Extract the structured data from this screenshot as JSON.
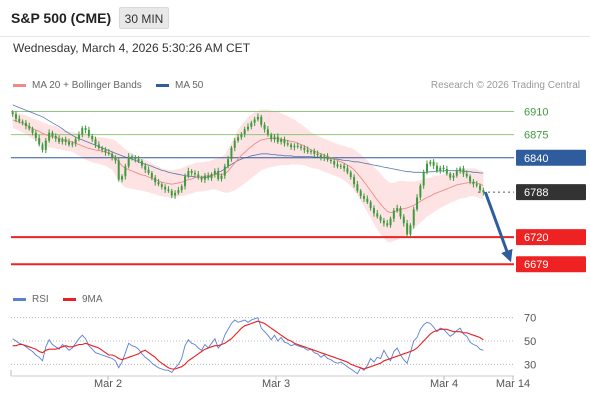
{
  "header": {
    "title": "S&P 500 (CME)",
    "interval": "30 MIN"
  },
  "datetime": "Wednesday, March 4, 2026 5:30:26 AM CET",
  "legend": {
    "ma20_label": "MA 20 + Bollinger Bands",
    "ma50_label": "MA 50",
    "credit": "Research © 2026 Trading Central"
  },
  "rsi_legend": {
    "rsi_label": "RSI",
    "ma_label": "9MA"
  },
  "colors": {
    "candle": "#3e9a3e",
    "bollinger_fill": "#fde3e3",
    "ma20": "#f08a8a",
    "ma50": "#2f5c9c",
    "resistance": "#93c47d",
    "pivot": "#2f5c9c",
    "support": "#ee2222",
    "last_price": "#333333",
    "arrow": "#2f5c9c",
    "rsi": "#5b7fd6",
    "rsi_ma": "#e82222"
  },
  "chart_data": [
    {
      "type": "candlestick",
      "name": "price",
      "x_ticks": [
        "Mar 2",
        "Mar 3",
        "Mar 4",
        "Mar 14"
      ],
      "ylim": [
        6640,
        6935
      ],
      "levels": [
        {
          "value": 6910,
          "label": "6910",
          "kind": "resistance"
        },
        {
          "value": 6875,
          "label": "6875",
          "kind": "resistance"
        },
        {
          "value": 6840,
          "label": "6840",
          "kind": "pivot"
        },
        {
          "value": 6788,
          "label": "6788",
          "kind": "last"
        },
        {
          "value": 6720,
          "label": "6720",
          "kind": "support"
        },
        {
          "value": 6679,
          "label": "6679",
          "kind": "support"
        }
      ],
      "close": [
        6906,
        6899,
        6895,
        6893,
        6888,
        6884,
        6878,
        6870,
        6860,
        6852,
        6866,
        6878,
        6873,
        6869,
        6864,
        6868,
        6864,
        6860,
        6862,
        6868,
        6875,
        6885,
        6882,
        6873,
        6868,
        6860,
        6855,
        6852,
        6848,
        6846,
        6840,
        6836,
        6807,
        6812,
        6827,
        6842,
        6840,
        6838,
        6835,
        6828,
        6822,
        6817,
        6810,
        6803,
        6800,
        6796,
        6792,
        6790,
        6783,
        6787,
        6791,
        6797,
        6812,
        6820,
        6817,
        6815,
        6810,
        6807,
        6813,
        6809,
        6815,
        6820,
        6808,
        6813,
        6827,
        6838,
        6855,
        6866,
        6871,
        6876,
        6883,
        6887,
        6893,
        6898,
        6902,
        6890,
        6883,
        6875,
        6868,
        6872,
        6864,
        6868,
        6862,
        6860,
        6856,
        6858,
        6857,
        6855,
        6852,
        6849,
        6850,
        6846,
        6844,
        6840,
        6842,
        6837,
        6835,
        6830,
        6827,
        6828,
        6824,
        6818,
        6811,
        6800,
        6790,
        6782,
        6778,
        6773,
        6764,
        6756,
        6751,
        6745,
        6741,
        6738,
        6748,
        6760,
        6764,
        6751,
        6741,
        6724,
        6738,
        6762,
        6780,
        6798,
        6818,
        6831,
        6834,
        6828,
        6820,
        6825,
        6823,
        6816,
        6810,
        6813,
        6820,
        6824,
        6816,
        6812,
        6804,
        6800,
        6798,
        6791,
        6788
      ],
      "ma20": [
        6897,
        6896,
        6894,
        6892,
        6890,
        6887,
        6884,
        6882,
        6880,
        6877,
        6875,
        6873,
        6872,
        6871,
        6869,
        6868,
        6866,
        6865,
        6864,
        6862,
        6860,
        6858,
        6856,
        6854,
        6853,
        6852,
        6851,
        6850,
        6849,
        6847,
        6845,
        6840,
        6834,
        6828,
        6824,
        6822,
        6820,
        6818,
        6816,
        6814,
        6813,
        6811,
        6809,
        6807,
        6805,
        6803,
        6802,
        6801,
        6800,
        6801,
        6802,
        6803,
        6805,
        6807,
        6808,
        6810,
        6811,
        6811,
        6812,
        6813,
        6814,
        6815,
        6815,
        6815,
        6816,
        6820,
        6826,
        6832,
        6838,
        6844,
        6848,
        6853,
        6857,
        6861,
        6864,
        6867,
        6868,
        6869,
        6869,
        6869,
        6869,
        6868,
        6867,
        6866,
        6865,
        6864,
        6862,
        6860,
        6858,
        6855,
        6852,
        6850,
        6848,
        6846,
        6844,
        6842,
        6840,
        6838,
        6836,
        6834,
        6832,
        6829,
        6826,
        6822,
        6816,
        6810,
        6804,
        6797,
        6790,
        6783,
        6776,
        6770,
        6764,
        6759,
        6757,
        6758,
        6760,
        6762,
        6763,
        6764,
        6766,
        6768,
        6771,
        6774,
        6777,
        6780,
        6782,
        6785,
        6787,
        6789,
        6791,
        6793,
        6795,
        6797,
        6799,
        6800,
        6801,
        6802,
        6803,
        6803,
        6802,
        6800,
        6798
      ],
      "ma50": [
        6920,
        6918,
        6916,
        6914,
        6912,
        6910,
        6908,
        6906,
        6904,
        6902,
        6899,
        6896,
        6893,
        6890,
        6887,
        6884,
        6880,
        6877,
        6874,
        6871,
        6869,
        6867,
        6865,
        6863,
        6861,
        6859,
        6857,
        6855,
        6853,
        6851,
        6849,
        6847,
        6845,
        6843,
        6841,
        6840,
        6838,
        6836,
        6834,
        6832,
        6830,
        6829,
        6827,
        6825,
        6823,
        6821,
        6820,
        6818,
        6817,
        6816,
        6815,
        6814,
        6813,
        6812,
        6812,
        6811,
        6811,
        6810,
        6810,
        6811,
        6813,
        6815,
        6818,
        6820,
        6823,
        6827,
        6830,
        6833,
        6836,
        6838,
        6840,
        6841,
        6843,
        6844,
        6845,
        6846,
        6846,
        6846,
        6845,
        6845,
        6844,
        6844,
        6843,
        6843,
        6843,
        6842,
        6842,
        6842,
        6842,
        6842,
        6842,
        6841,
        6841,
        6841,
        6840,
        6840,
        6839,
        6838,
        6838,
        6837,
        6836,
        6836,
        6835,
        6834,
        6834,
        6833,
        6832,
        6831,
        6830,
        6829,
        6828,
        6827,
        6826,
        6825,
        6824,
        6823,
        6822,
        6821,
        6820,
        6819,
        6819,
        6818,
        6818,
        6818,
        6818,
        6818,
        6819,
        6819,
        6820,
        6820,
        6820,
        6821,
        6821,
        6821,
        6821,
        6820,
        6820,
        6819,
        6819,
        6818,
        6818,
        6817,
        6817
      ],
      "bb_width": [
        12,
        13,
        13,
        14,
        14,
        15,
        15,
        16,
        16,
        17,
        17,
        17,
        17,
        17,
        16,
        16,
        15,
        15,
        15,
        16,
        17,
        18,
        19,
        19,
        20,
        20,
        20,
        21,
        21,
        22,
        23,
        26,
        28,
        29,
        29,
        28,
        27,
        26,
        25,
        24,
        24,
        23,
        23,
        22,
        22,
        21,
        21,
        21,
        21,
        21,
        21,
        21,
        22,
        22,
        22,
        22,
        22,
        22,
        22,
        22,
        22,
        23,
        24,
        26,
        29,
        33,
        37,
        41,
        44,
        46,
        47,
        48,
        48,
        48,
        47,
        46,
        45,
        44,
        43,
        42,
        41,
        39,
        38,
        37,
        35,
        34,
        32,
        31,
        29,
        28,
        27,
        26,
        25,
        25,
        25,
        25,
        25,
        25,
        25,
        25,
        26,
        27,
        29,
        31,
        33,
        35,
        37,
        39,
        41,
        43,
        45,
        46,
        46,
        46,
        45,
        44,
        44,
        43,
        42,
        40,
        38,
        36,
        34,
        32,
        31,
        29,
        28,
        27,
        26,
        25,
        24,
        24,
        23,
        23,
        23,
        22,
        22,
        22,
        21,
        21,
        21,
        21,
        21
      ]
    },
    {
      "type": "line",
      "name": "rsi",
      "ylim": [
        20,
        80
      ],
      "y_ticks": [
        {
          "value": 70,
          "label": "70"
        },
        {
          "value": 50,
          "label": "50"
        },
        {
          "value": 30,
          "label": "30"
        }
      ],
      "series": [
        {
          "name": "RSI",
          "values": [
            52,
            50,
            48,
            47,
            45,
            43,
            41,
            38,
            36,
            33,
            45,
            51,
            47,
            45,
            43,
            47,
            45,
            42,
            44,
            48,
            52,
            55,
            52,
            46,
            43,
            40,
            39,
            38,
            37,
            36,
            35,
            33,
            27,
            32,
            40,
            48,
            46,
            45,
            43,
            39,
            36,
            34,
            31,
            29,
            27,
            26,
            25,
            25,
            23,
            27,
            30,
            35,
            46,
            51,
            48,
            47,
            44,
            42,
            47,
            44,
            48,
            52,
            44,
            47,
            55,
            60,
            65,
            68,
            66,
            67,
            68,
            66,
            68,
            69,
            70,
            61,
            58,
            55,
            51,
            55,
            50,
            53,
            49,
            48,
            46,
            47,
            46,
            45,
            44,
            42,
            43,
            40,
            39,
            36,
            38,
            35,
            34,
            32,
            31,
            32,
            30,
            28,
            26,
            24,
            22,
            27,
            25,
            29,
            35,
            32,
            36,
            35,
            42,
            37,
            33,
            41,
            44,
            38,
            34,
            31,
            40,
            50,
            53,
            60,
            64,
            66,
            65,
            62,
            58,
            61,
            60,
            57,
            54,
            56,
            59,
            61,
            56,
            54,
            49,
            47,
            46,
            43,
            42
          ]
        },
        {
          "name": "9MA",
          "values": [
            46,
            46,
            47,
            47,
            46,
            45,
            44,
            43,
            41,
            40,
            42,
            43,
            43,
            43,
            44,
            45,
            46,
            45,
            45,
            46,
            47,
            47,
            48,
            47,
            46,
            45,
            44,
            42,
            40,
            38,
            38,
            37,
            35,
            34,
            35,
            36,
            37,
            38,
            39,
            41,
            42,
            40,
            38,
            36,
            33,
            31,
            29,
            27,
            26,
            26,
            27,
            28,
            30,
            33,
            35,
            37,
            39,
            41,
            43,
            44,
            45,
            46,
            46,
            47,
            48,
            50,
            52,
            55,
            58,
            61,
            63,
            64,
            65,
            66,
            67,
            66,
            65,
            63,
            61,
            59,
            57,
            55,
            53,
            51,
            50,
            48,
            47,
            46,
            45,
            44,
            43,
            42,
            41,
            40,
            39,
            38,
            37,
            36,
            35,
            34,
            33,
            32,
            30,
            29,
            28,
            27,
            26,
            27,
            28,
            29,
            30,
            31,
            33,
            34,
            35,
            36,
            37,
            38,
            39,
            40,
            41,
            42,
            44,
            47,
            50,
            53,
            56,
            58,
            59,
            60,
            60,
            60,
            59,
            58,
            58,
            58,
            57,
            57,
            56,
            55,
            54,
            53,
            51
          ]
        }
      ]
    }
  ]
}
